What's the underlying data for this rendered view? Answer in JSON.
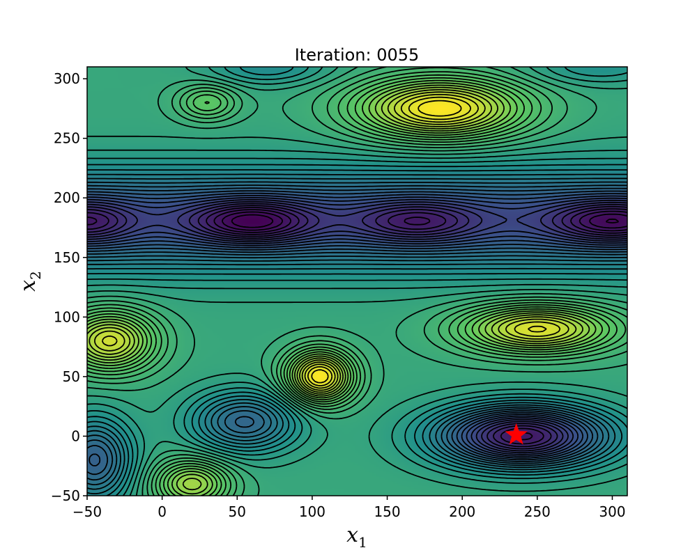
{
  "chart_data": {
    "type": "contour",
    "title": "Iteration: 0055",
    "xlabel": "x",
    "xlabel_sub": "1",
    "ylabel": "x",
    "ylabel_sub": "2",
    "xlim": [
      -50,
      310
    ],
    "ylim": [
      -50,
      310
    ],
    "xticks": [
      -50,
      0,
      50,
      100,
      150,
      200,
      250,
      300
    ],
    "yticks": [
      -50,
      0,
      50,
      100,
      150,
      200,
      250,
      300
    ],
    "colormap": "viridis",
    "contour_style": "dashed-black",
    "marker": {
      "name": "best-point",
      "shape": "star",
      "color": "#ff0000",
      "x": 236,
      "y": 1
    }
  }
}
